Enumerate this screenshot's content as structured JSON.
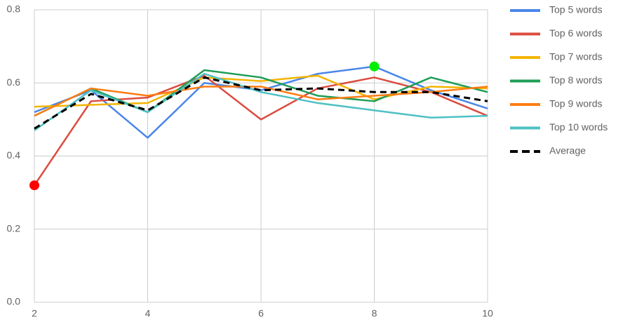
{
  "chart_data": {
    "type": "line",
    "x": [
      2,
      3,
      4,
      5,
      6,
      7,
      8,
      9,
      10
    ],
    "xlim": [
      2,
      10
    ],
    "xticks": [
      2,
      4,
      6,
      8,
      10
    ],
    "ylim": [
      0,
      0.8
    ],
    "yticks": [
      {
        "value": 0,
        "label": "0.0"
      },
      0.2,
      0.4,
      0.6,
      0.8
    ],
    "grid": true,
    "legend": "right",
    "series": [
      {
        "name": "Top 5 words",
        "color": "#4a86e8",
        "values": [
          0.52,
          0.58,
          0.45,
          0.6,
          0.58,
          0.625,
          0.645,
          0.58,
          0.53
        ]
      },
      {
        "name": "Top 6 words",
        "color": "#db4c3f",
        "values": [
          0.32,
          0.55,
          0.56,
          0.62,
          0.5,
          0.585,
          0.615,
          0.575,
          0.51
        ]
      },
      {
        "name": "Top 7 words",
        "color": "#f4b400",
        "values": [
          0.535,
          0.54,
          0.545,
          0.615,
          0.605,
          0.62,
          0.555,
          0.59,
          0.585
        ]
      },
      {
        "name": "Top 8 words",
        "color": "#1e9e57",
        "values": [
          0.51,
          0.585,
          0.52,
          0.635,
          0.615,
          0.565,
          0.55,
          0.615,
          0.575
        ]
      },
      {
        "name": "Top 9 words",
        "color": "#ff7c12",
        "values": [
          0.51,
          0.585,
          0.565,
          0.59,
          0.59,
          0.555,
          0.565,
          0.575,
          0.59
        ]
      },
      {
        "name": "Top 10 words",
        "color": "#4ec1c4",
        "values": [
          0.47,
          0.58,
          0.52,
          0.625,
          0.575,
          0.545,
          0.525,
          0.505,
          0.51
        ]
      },
      {
        "name": "Average",
        "color": "#000000",
        "dashed": true,
        "values": [
          0.475,
          0.57,
          0.525,
          0.615,
          0.58,
          0.585,
          0.575,
          0.575,
          0.55
        ]
      }
    ],
    "highlights": [
      {
        "x": 2,
        "y": 0.32,
        "color": "#ff0000"
      },
      {
        "x": 8,
        "y": 0.645,
        "color": "#00ee00"
      }
    ]
  }
}
